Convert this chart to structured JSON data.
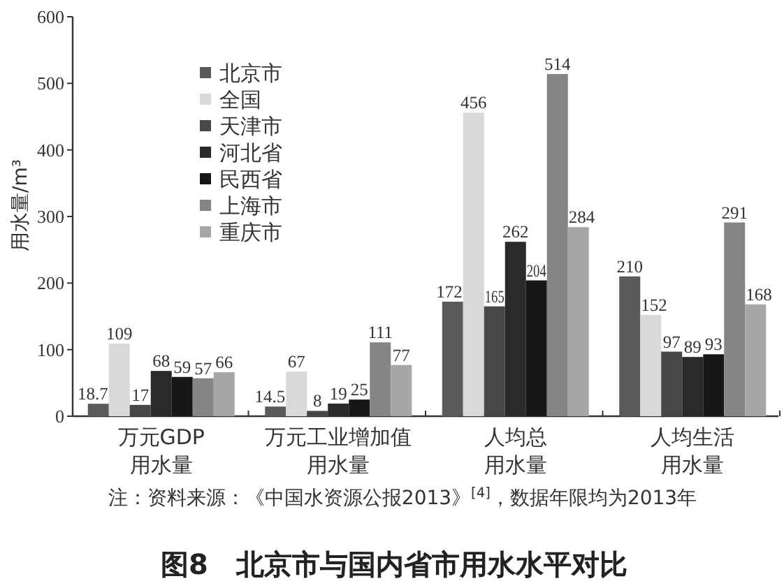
{
  "chart_data": {
    "type": "bar",
    "title": "图8　北京市与国内省市用水水平对比",
    "ylabel": "用水量/m³",
    "categories": [
      "万元GDP用水量",
      "万元工业增加值用水量",
      "人均总用水量",
      "人均生活用水量"
    ],
    "series": [
      {
        "name": "北京市",
        "color": "#5a5a5a",
        "values": [
          18.7,
          14.5,
          172,
          210
        ]
      },
      {
        "name": "全国",
        "color": "#d9d9d9",
        "values": [
          109,
          67,
          456,
          152
        ]
      },
      {
        "name": "天津市",
        "color": "#474747",
        "values": [
          17,
          8,
          165,
          97
        ]
      },
      {
        "name": "河北省",
        "color": "#2a2a2a",
        "values": [
          68,
          19,
          262,
          89
        ]
      },
      {
        "name": "民西省",
        "color": "#171717",
        "values": [
          59,
          25,
          204,
          93
        ]
      },
      {
        "name": "上海市",
        "color": "#858585",
        "values": [
          57,
          111,
          514,
          291
        ]
      },
      {
        "name": "重庆市",
        "color": "#a6a6a6",
        "values": [
          66,
          77,
          284,
          168
        ]
      }
    ],
    "ylim": [
      0,
      600
    ],
    "yticks": [
      0,
      100,
      200,
      300,
      400,
      500,
      600
    ],
    "data_labels": true,
    "legend": "top left",
    "annotations": [
      "注：资料来源：《中国水资源公报2013》$^{[4]}$，数据年限均为2013年"
    ]
  }
}
